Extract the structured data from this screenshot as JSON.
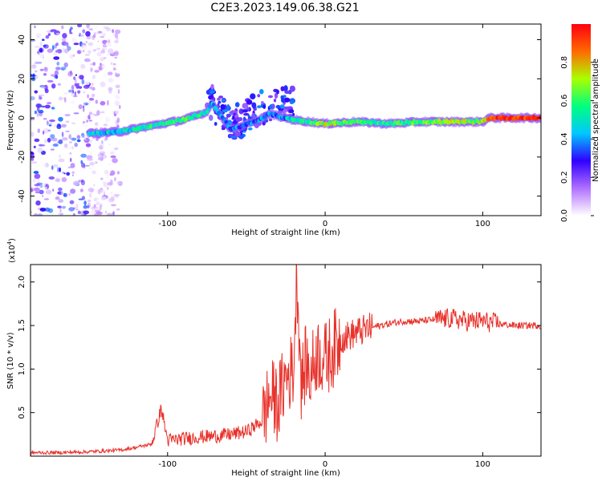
{
  "figure_title": "C2E3.2023.149.06.38.G21",
  "chart_data": [
    {
      "type": "heatmap",
      "title": "C2E3.2023.149.06.38.G21",
      "xlabel": "Height of straight line (km)",
      "ylabel": "Frequency (Hz)",
      "xlim": [
        -187,
        137
      ],
      "ylim": [
        -50,
        48
      ],
      "xticks": [
        -100,
        0,
        100
      ],
      "yticks": [
        -40,
        -20,
        0,
        20,
        40
      ],
      "colorbar": {
        "label": "Normalized spectral amplitude",
        "range": [
          0,
          1
        ],
        "ticks": [
          "0.0",
          "0.2",
          "0.4",
          "0.6",
          "0.8"
        ],
        "tick_values": [
          0.0,
          0.2,
          0.4,
          0.6,
          0.8
        ],
        "stops": [
          "#ffffff",
          "#b070ff",
          "#3000ff",
          "#00c8ff",
          "#00ff80",
          "#aaff00",
          "#ff6a00",
          "#ff0010"
        ]
      },
      "ridge": {
        "x": [
          -150,
          -130,
          -110,
          -90,
          -75,
          -72,
          -60,
          -45,
          -35,
          -25,
          -20,
          -10,
          0,
          20,
          40,
          60,
          80,
          100,
          104,
          137
        ],
        "y": [
          -8,
          -7,
          -4,
          -1,
          3,
          8,
          -6,
          -2,
          2,
          0,
          -1,
          -2,
          -3,
          -2,
          -3,
          -2,
          -2,
          -2,
          0,
          0
        ],
        "amplitude": [
          0.45,
          0.45,
          0.55,
          0.6,
          0.5,
          0.4,
          0.35,
          0.35,
          0.35,
          0.4,
          0.5,
          0.55,
          0.7,
          0.6,
          0.55,
          0.6,
          0.7,
          0.65,
          0.9,
          0.95
        ]
      },
      "noise_region_x": [
        -187,
        -150
      ]
    },
    {
      "type": "line",
      "xlabel": "Height of straight line (km)",
      "ylabel": "SNR (10 * v/v)",
      "y_scale_label": "(x10",
      "y_scale_exp": "4",
      "y_scale_close": ")",
      "xlim": [
        -187,
        137
      ],
      "ylim": [
        0,
        2.2
      ],
      "xticks": [
        -100,
        0,
        100
      ],
      "yticks": [
        "0.5",
        "1.0",
        "1.5",
        "2.0"
      ],
      "ytick_values": [
        0.5,
        1.0,
        1.5,
        2.0
      ],
      "series": [
        {
          "name": "SNR",
          "color": "#e8312a",
          "x": [
            -187,
            -170,
            -150,
            -130,
            -120,
            -110,
            -104,
            -100,
            -90,
            -80,
            -70,
            -60,
            -50,
            -40,
            -35,
            -30,
            -25,
            -20,
            -18,
            -15,
            -12,
            -10,
            -5,
            0,
            10,
            20,
            30,
            40,
            50,
            60,
            70,
            80,
            90,
            100,
            110,
            120,
            137
          ],
          "y": [
            0.04,
            0.04,
            0.05,
            0.07,
            0.1,
            0.14,
            0.55,
            0.18,
            0.2,
            0.22,
            0.23,
            0.25,
            0.28,
            0.4,
            0.7,
            0.6,
            0.9,
            1.0,
            2.15,
            0.8,
            1.1,
            0.9,
            1.2,
            1.1,
            1.35,
            1.42,
            1.48,
            1.52,
            1.55,
            1.55,
            1.57,
            1.58,
            1.55,
            1.55,
            1.52,
            1.5,
            1.5
          ]
        }
      ]
    }
  ]
}
